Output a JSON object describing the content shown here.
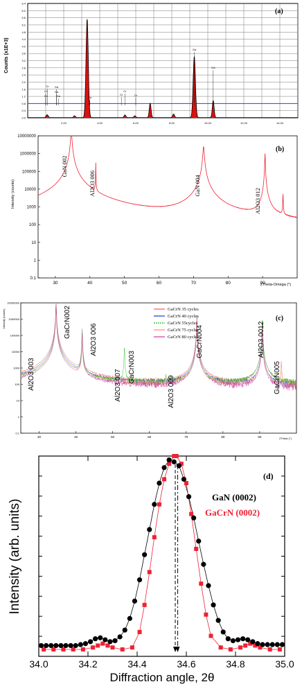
{
  "panels": {
    "a": {
      "label": "(a)",
      "ylabel": "Counts (x1E+3)",
      "yticks": [
        "6.4",
        "6.0",
        "5.6",
        "5.2",
        "4.8",
        "4.4",
        "4.0",
        "3.6",
        "3.2",
        "2.8",
        "2.4",
        "2.0",
        "1.6",
        "1.2",
        "0.8",
        "0.4",
        "0.0"
      ],
      "xticks": [
        "2.00",
        "4.00",
        "6.00",
        "8.00",
        "10.00",
        "12.00",
        "14.00"
      ],
      "peak_labels": [
        "Cr",
        "Cr",
        "Cr",
        "Ga",
        "Ga",
        "Ga",
        "Kα",
        "Cr",
        "Cr",
        "Cr",
        "Ga",
        "Ga"
      ]
    },
    "b": {
      "label": "(b)",
      "ylabel": "Intensity (counts)",
      "xlabel": "2Theta-Omega (°)",
      "annotations": [
        "GaN 002",
        "Al2O3 006",
        "GaN 004",
        "Al2O3 012"
      ]
    },
    "c": {
      "label": "(c)",
      "ylabel": "Intensity (counts)",
      "xlabel": "2Theta (°)",
      "legend": [
        "GaCrN 35 cycles",
        "GaCrN 40 cycles",
        "GaCrN 55cycles",
        "GaCrN 75 cycles",
        "GaCrN 80 cycles"
      ],
      "annotations": [
        "Al2O3 003",
        "GaCrN002",
        "Al2O3 006",
        "Al2O3 007",
        "GaCrN003",
        "Al2O3 009",
        "GaCrN004",
        "Al2O3 0012",
        "GaCrN005"
      ]
    },
    "d": {
      "label": "(d)",
      "ylabel": "Intensity (arb. units)",
      "xlabel": "Diffraction angle, 2θ",
      "legend": [
        "GaN (0002)",
        "GaCrN (0002)"
      ]
    }
  },
  "colors": {
    "eds": "#dd1111",
    "xrd_b": "#ee2233",
    "gan_d": "#000000",
    "gacrn_d": "#ee2233",
    "series_c": [
      "#ee6666",
      "#3344cc",
      "#22bb22",
      "#ff9966",
      "#cc44aa"
    ]
  },
  "chart_data": [
    {
      "type": "bar",
      "panel": "a",
      "x_unit": "keV",
      "xlim": [
        0,
        15
      ],
      "ylim": [
        0,
        6.4
      ],
      "peaks": [
        {
          "x": 1.05,
          "y": 0.08
        },
        {
          "x": 1.1,
          "y": 0.1
        },
        {
          "x": 2.6,
          "y": 0.1
        },
        {
          "x": 3.3,
          "y": 5.5
        },
        {
          "x": 5.4,
          "y": 0.15
        },
        {
          "x": 5.95,
          "y": 0.1
        },
        {
          "x": 6.8,
          "y": 0.8
        },
        {
          "x": 8.1,
          "y": 0.2
        },
        {
          "x": 9.25,
          "y": 3.4
        },
        {
          "x": 10.3,
          "y": 0.95
        }
      ]
    },
    {
      "type": "line",
      "panel": "b",
      "log_y": true,
      "xlim": [
        25,
        100
      ],
      "ylim": [
        0.1,
        10000000
      ],
      "xticks": [
        30,
        40,
        50,
        60,
        70,
        80,
        90
      ],
      "yticks": [
        0.1,
        1,
        10,
        100,
        1000,
        10000,
        100000,
        1000000,
        10000000
      ],
      "baseline": 60,
      "peaks": [
        {
          "x": 34.6,
          "y": 20000000,
          "w": 0.9
        },
        {
          "x": 41.7,
          "y": 300000,
          "w": 0.2
        },
        {
          "x": 72.9,
          "y": 2500000,
          "w": 1.0
        },
        {
          "x": 90.7,
          "y": 1000000,
          "w": 0.4
        },
        {
          "x": 95.9,
          "y": 5000,
          "w": 0.35
        }
      ]
    },
    {
      "type": "line",
      "panel": "c",
      "log_y": true,
      "xlim": [
        25,
        100
      ],
      "ylim": [
        0.1,
        10000000
      ],
      "xticks": [
        30,
        40,
        50,
        60,
        70,
        80,
        90
      ],
      "yticks": [
        0.1,
        1,
        10,
        100,
        1000,
        10000,
        100000,
        1000000,
        10000000
      ],
      "series": [
        {
          "name": "GaCrN 35 cycles",
          "baseline": 100,
          "peaks": [
            {
              "x": 34.6,
              "y": 20000000
            },
            {
              "x": 41.7,
              "y": 200000
            },
            {
              "x": 72.9,
              "y": 2000000
            },
            {
              "x": 90.7,
              "y": 1000000
            },
            {
              "x": 95.9,
              "y": 3000
            }
          ]
        },
        {
          "name": "GaCrN 40 cycles",
          "baseline": 90,
          "peaks": [
            {
              "x": 34.6,
              "y": 15000000
            },
            {
              "x": 41.7,
              "y": 150000
            },
            {
              "x": 72.9,
              "y": 1500000
            },
            {
              "x": 90.7,
              "y": 500000
            }
          ]
        },
        {
          "name": "GaCrN 55cycles",
          "baseline": 120,
          "peaks": [
            {
              "x": 34.6,
              "y": 10000000
            },
            {
              "x": 41.7,
              "y": 300000
            },
            {
              "x": 53.2,
              "y": 30000
            },
            {
              "x": 64.5,
              "y": 400
            },
            {
              "x": 72.9,
              "y": 1000000
            },
            {
              "x": 90.7,
              "y": 1000000
            }
          ]
        },
        {
          "name": "GaCrN 75 cycles",
          "baseline": 80,
          "peaks": [
            {
              "x": 34.6,
              "y": 12000000
            },
            {
              "x": 41.7,
              "y": 100000
            },
            {
              "x": 72.9,
              "y": 1200000
            },
            {
              "x": 90.7,
              "y": 400000
            },
            {
              "x": 95.9,
              "y": 3000
            }
          ]
        },
        {
          "name": "GaCrN 80 cycles",
          "baseline": 70,
          "peaks": [
            {
              "x": 34.6,
              "y": 8000000
            },
            {
              "x": 41.7,
              "y": 200000
            },
            {
              "x": 72.9,
              "y": 900000
            },
            {
              "x": 90.7,
              "y": 300000
            }
          ]
        }
      ]
    },
    {
      "type": "scatter",
      "panel": "d",
      "xlim": [
        34.0,
        35.0
      ],
      "ylim": [
        0,
        1.0
      ],
      "xticks": [
        34.0,
        34.2,
        34.4,
        34.6,
        34.8,
        35.0
      ],
      "series": [
        {
          "name": "GaN (0002)",
          "x": [
            34.01,
            34.03,
            34.05,
            34.07,
            34.09,
            34.11,
            34.13,
            34.15,
            34.17,
            34.19,
            34.21,
            34.23,
            34.25,
            34.27,
            34.29,
            34.31,
            34.33,
            34.35,
            34.37,
            34.39,
            34.41,
            34.43,
            34.45,
            34.47,
            34.49,
            34.51,
            34.53,
            34.55,
            34.57,
            34.59,
            34.61,
            34.63,
            34.65,
            34.67,
            34.69,
            34.71,
            34.73,
            34.75,
            34.77,
            34.79,
            34.81,
            34.83,
            34.85,
            34.87,
            34.89,
            34.91,
            34.93,
            34.95,
            34.97,
            34.99
          ],
          "y": [
            0.02,
            0.02,
            0.02,
            0.02,
            0.02,
            0.02,
            0.02,
            0.02,
            0.025,
            0.03,
            0.04,
            0.055,
            0.06,
            0.05,
            0.04,
            0.045,
            0.065,
            0.1,
            0.16,
            0.25,
            0.36,
            0.49,
            0.62,
            0.75,
            0.86,
            0.94,
            0.98,
            0.97,
            0.95,
            0.88,
            0.79,
            0.68,
            0.56,
            0.44,
            0.33,
            0.23,
            0.15,
            0.09,
            0.055,
            0.045,
            0.05,
            0.055,
            0.05,
            0.04,
            0.03,
            0.025,
            0.025,
            0.025,
            0.025,
            0.025
          ]
        },
        {
          "name": "GaCrN (0002)",
          "x": [
            34.02,
            34.06,
            34.1,
            34.14,
            34.18,
            34.22,
            34.24,
            34.26,
            34.28,
            34.3,
            34.34,
            34.38,
            34.41,
            34.43,
            34.45,
            34.47,
            34.49,
            34.51,
            34.53,
            34.55,
            34.56,
            34.58,
            34.6,
            34.62,
            34.64,
            34.66,
            34.68,
            34.7,
            34.74,
            34.78,
            34.82,
            34.84,
            34.86,
            34.88,
            34.9,
            34.94,
            34.98
          ],
          "y": [
            0.0,
            0.0,
            0.0,
            0.0,
            0.0,
            0.01,
            0.02,
            0.03,
            0.02,
            0.01,
            0.0,
            0.01,
            0.09,
            0.23,
            0.4,
            0.58,
            0.75,
            0.88,
            0.96,
            1.0,
            1.0,
            0.96,
            0.86,
            0.7,
            0.52,
            0.34,
            0.18,
            0.07,
            0.01,
            0.0,
            0.01,
            0.02,
            0.03,
            0.02,
            0.01,
            0.0,
            0.0
          ]
        }
      ],
      "markers": [
        34.555,
        34.565
      ]
    }
  ]
}
